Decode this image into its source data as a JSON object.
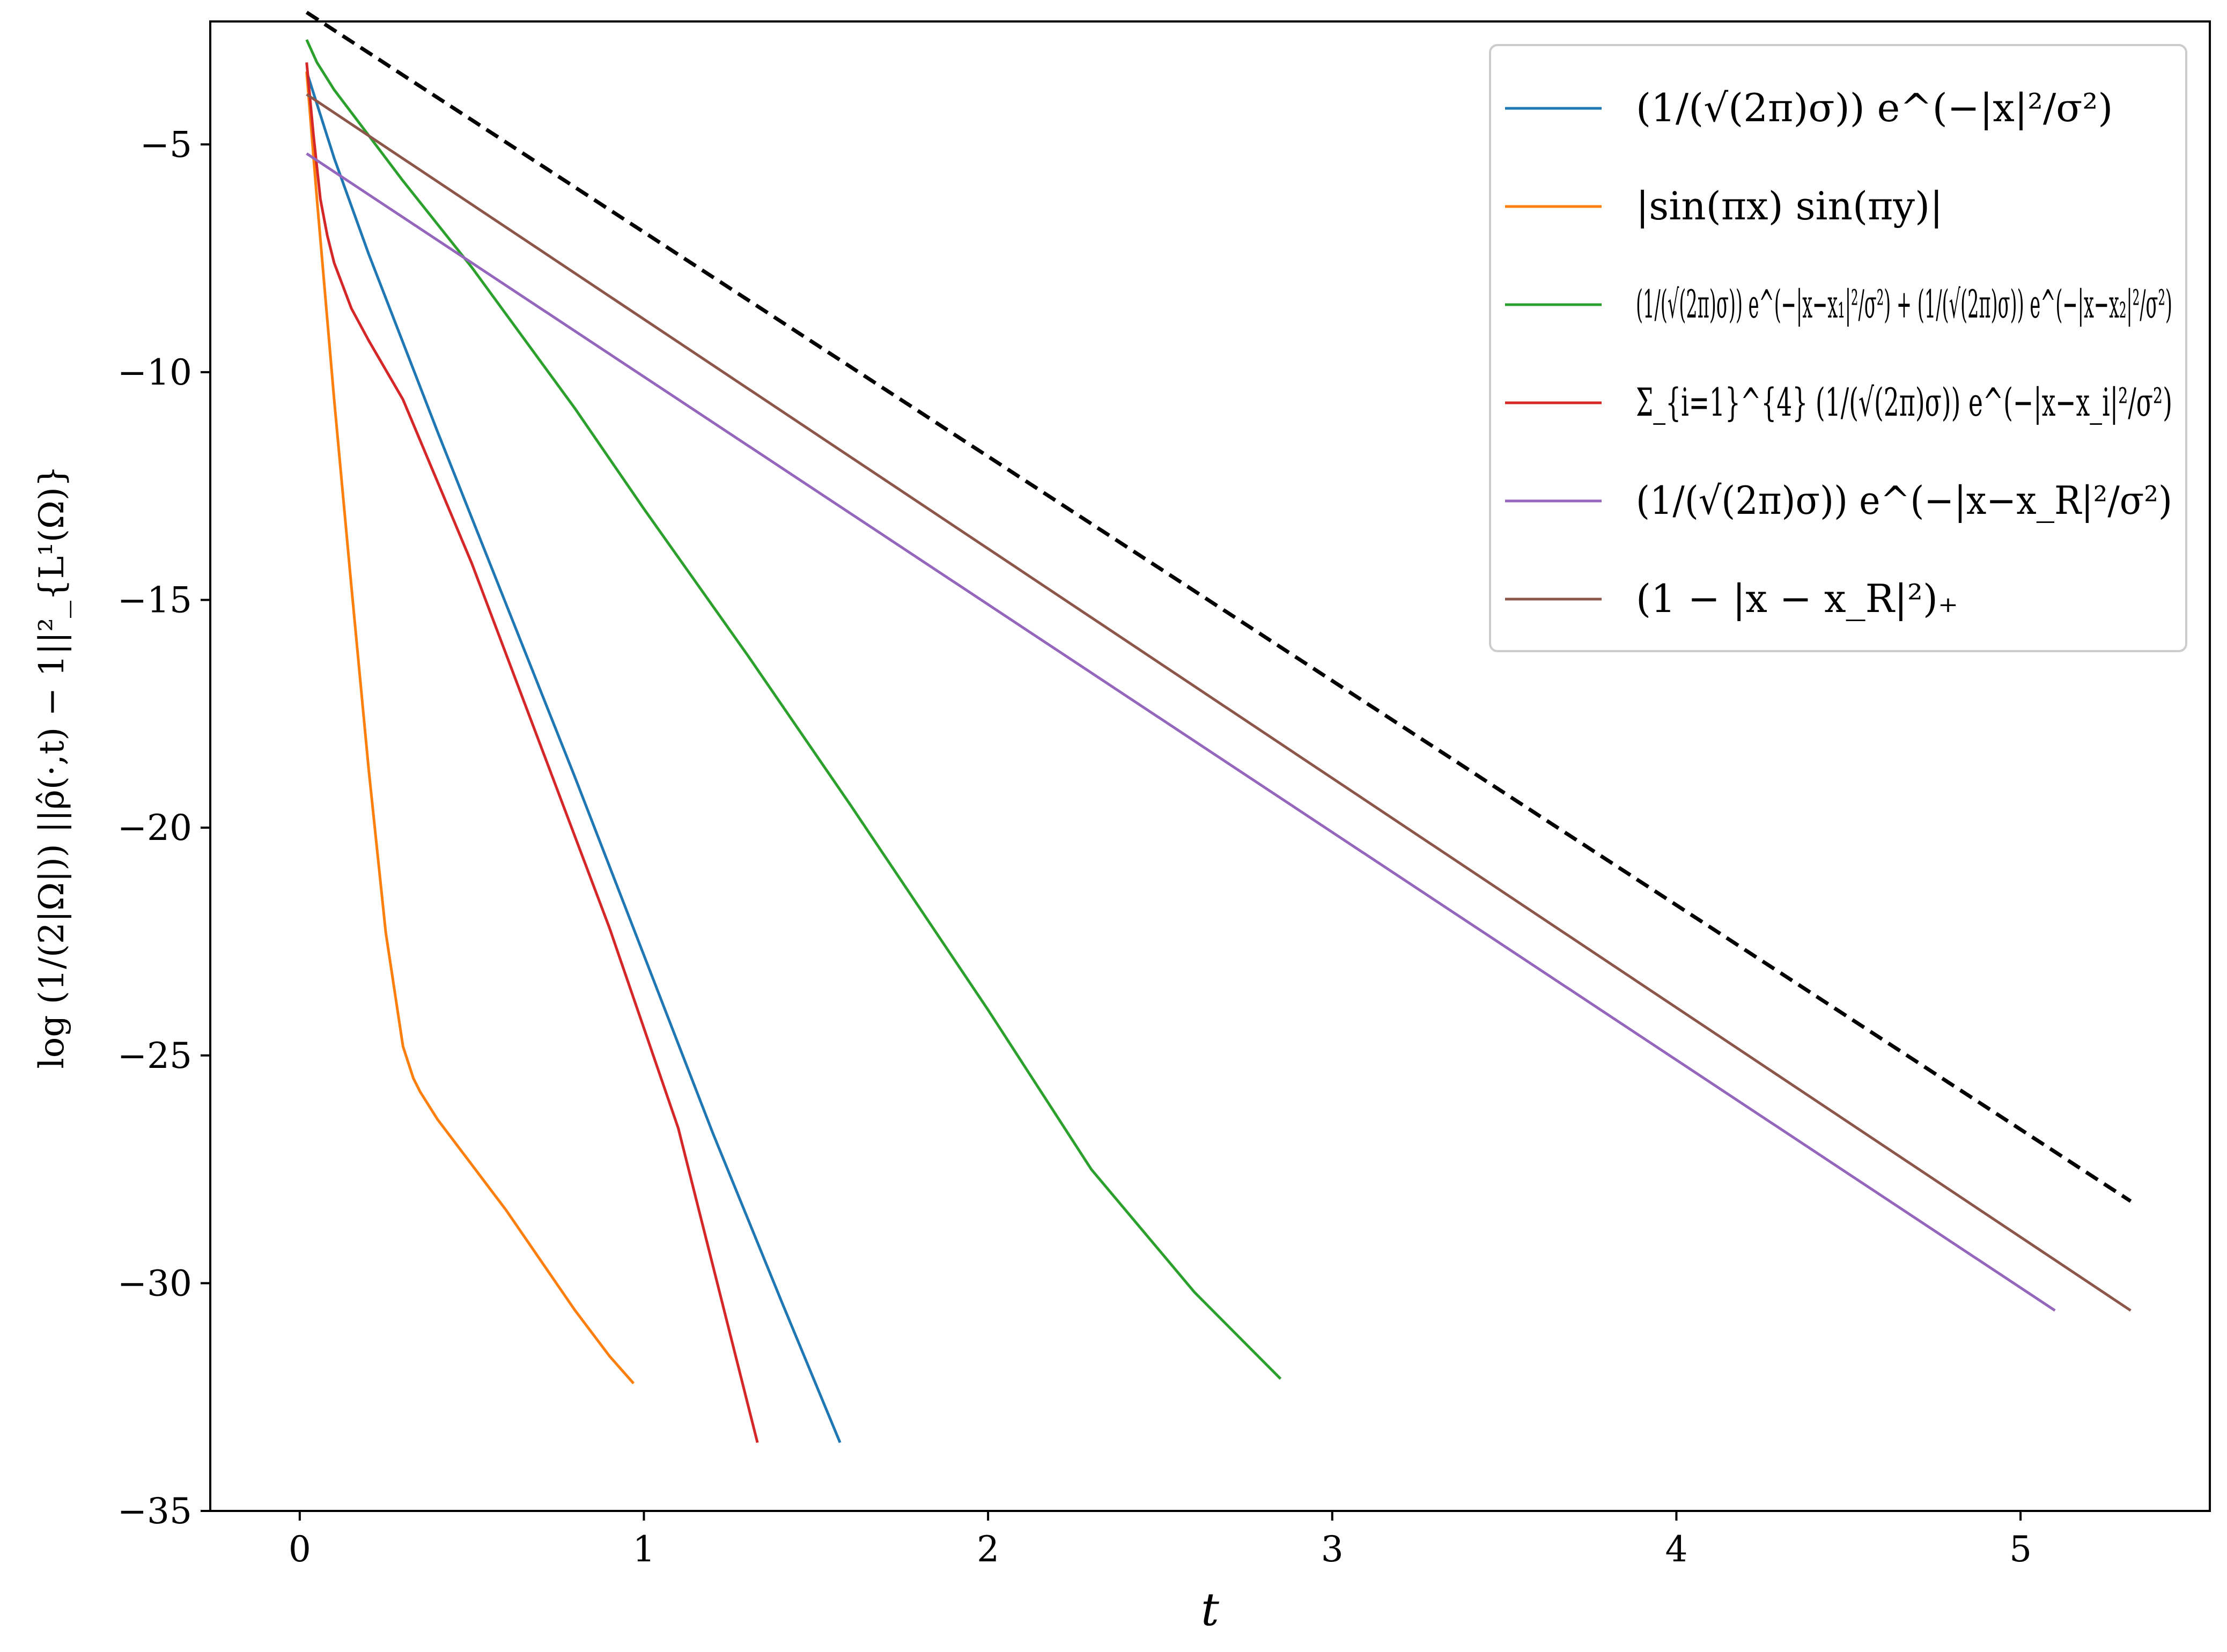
{
  "chart_data": {
    "type": "line",
    "title": "",
    "xlabel": "t",
    "ylabel": "log (1/(2|Ω|)) ||ρ̂(·,t) − 1||²_{L¹(Ω)}",
    "xlim": [
      -0.26,
      5.55
    ],
    "ylim": [
      -35.0,
      -2.3
    ],
    "xticks": [
      0,
      1,
      2,
      3,
      4,
      5
    ],
    "xtick_labels": [
      "0",
      "1",
      "2",
      "3",
      "4",
      "5"
    ],
    "yticks": [
      -5,
      -10,
      -15,
      -20,
      -25,
      -30,
      -35
    ],
    "ytick_labels": [
      "−5",
      "−10",
      "−15",
      "−20",
      "−25",
      "−30",
      "−35"
    ],
    "grid": false,
    "legend_position": "top-right",
    "series": [
      {
        "name": "(1/(√(2π)σ)) e^(−|x|²/σ²)",
        "color": "#1f77b4",
        "dashed": false,
        "x": [
          0.02,
          0.1,
          0.2,
          0.4,
          0.6,
          0.8,
          1.0,
          1.2,
          1.4,
          1.57
        ],
        "y": [
          -3.4,
          -5.3,
          -7.4,
          -11.3,
          -15.1,
          -18.9,
          -22.8,
          -26.7,
          -30.4,
          -33.5
        ]
      },
      {
        "name": "|sin(πx) sin(πy)|",
        "color": "#ff7f0e",
        "dashed": false,
        "x": [
          0.02,
          0.05,
          0.1,
          0.15,
          0.2,
          0.25,
          0.3,
          0.33,
          0.35,
          0.4,
          0.5,
          0.6,
          0.7,
          0.8,
          0.9,
          0.97
        ],
        "y": [
          -3.4,
          -6.2,
          -10.6,
          -14.7,
          -18.7,
          -22.3,
          -24.8,
          -25.5,
          -25.8,
          -26.4,
          -27.4,
          -28.4,
          -29.5,
          -30.6,
          -31.6,
          -32.2
        ]
      },
      {
        "name": "(1/(√(2π)σ)) e^(−|x−x₁|²/σ²) + (1/(√(2π)σ)) e^(−|x−x₂|²/σ²)",
        "color": "#2ca02c",
        "dashed": false,
        "x": [
          0.02,
          0.05,
          0.1,
          0.2,
          0.3,
          0.5,
          0.8,
          1.0,
          1.3,
          1.6,
          2.0,
          2.3,
          2.6,
          2.85
        ],
        "y": [
          -2.7,
          -3.2,
          -3.8,
          -4.8,
          -5.8,
          -7.7,
          -10.8,
          -13.0,
          -16.2,
          -19.5,
          -24.0,
          -27.5,
          -30.2,
          -32.1
        ]
      },
      {
        "name": "Σ_{i=1}^{4} (1/(√(2π)σ)) e^(−|x−x_i|²/σ²)",
        "color": "#d62728",
        "dashed": false,
        "x": [
          0.02,
          0.04,
          0.06,
          0.08,
          0.1,
          0.15,
          0.2,
          0.3,
          0.5,
          0.7,
          0.9,
          1.1,
          1.33
        ],
        "y": [
          -3.2,
          -4.8,
          -6.2,
          -7.0,
          -7.6,
          -8.6,
          -9.3,
          -10.6,
          -14.2,
          -18.2,
          -22.2,
          -26.6,
          -33.5
        ]
      },
      {
        "name": "(1/(√(2π)σ)) e^(−|x−x_R|²/σ²)",
        "color": "#9467bd",
        "dashed": false,
        "x": [
          0.02,
          5.1
        ],
        "y": [
          -5.2,
          -30.6
        ]
      },
      {
        "name": "(1 − |x − x_R|²)₊",
        "color": "#8c564b",
        "dashed": false,
        "x": [
          0.02,
          5.32
        ],
        "y": [
          -3.9,
          -30.6
        ]
      },
      {
        "name": "",
        "color": "#000000",
        "dashed": true,
        "x": [
          0.02,
          5.32
        ],
        "y": [
          -2.1,
          -28.2
        ]
      }
    ]
  }
}
